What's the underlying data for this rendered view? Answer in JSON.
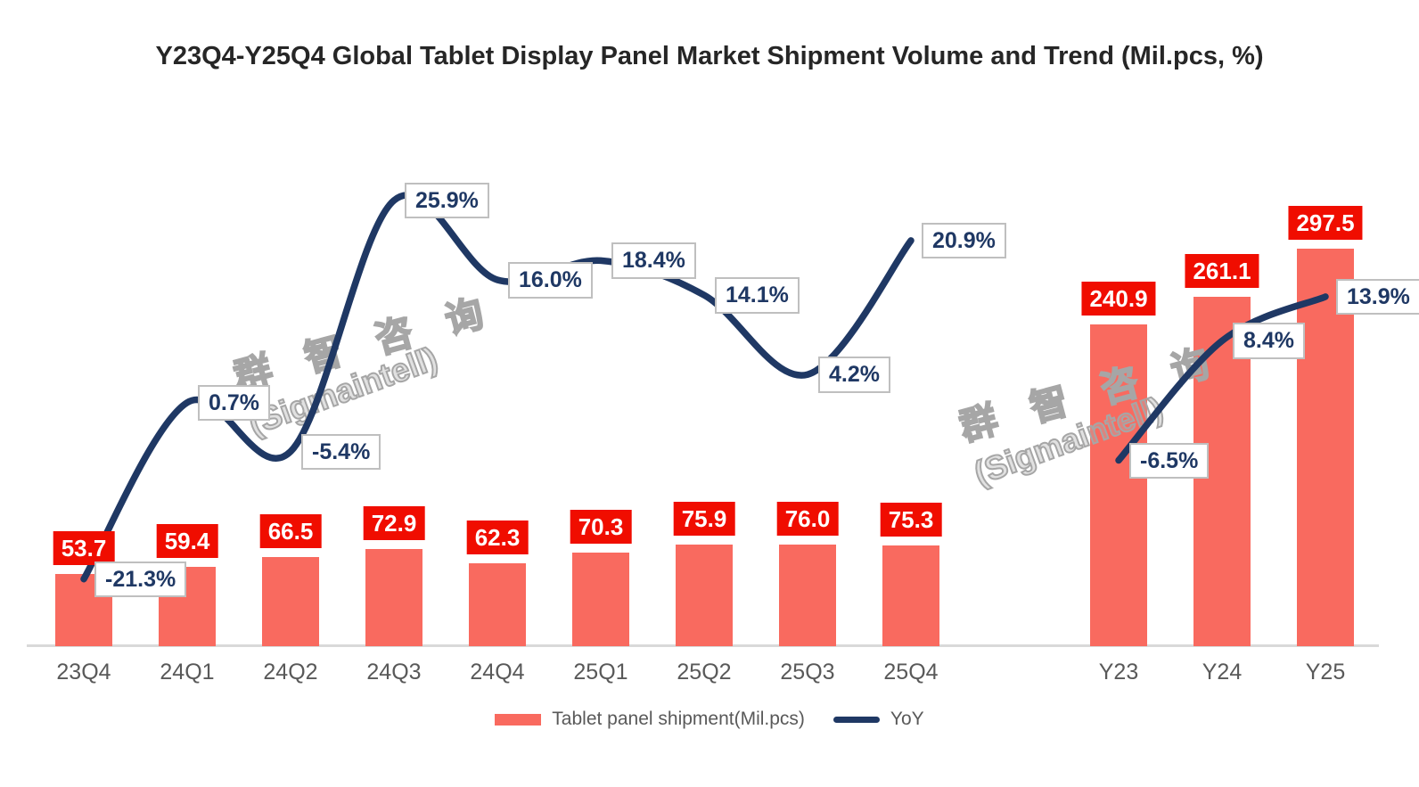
{
  "title": "Y23Q4-Y25Q4 Global Tablet Display Panel Market Shipment Volume and Trend (Mil.pcs, %)",
  "watermark": {
    "line1": "群 智 咨 询",
    "line2": "(Sigmaintell)"
  },
  "legend": {
    "bars": "Tablet panel shipment(Mil.pcs)",
    "line": "YoY"
  },
  "colors": {
    "bar": "#F96A5F",
    "bar_label_bg": "#F00D00",
    "bar_label_text": "#FFFFFF",
    "line": "#1F3864",
    "yoy_label_text": "#1F3864",
    "yoy_label_border": "#BFBFBF",
    "axis": "#D9D9D9",
    "tick_text": "#595959",
    "title_text": "#262626",
    "legend_text": "#595959",
    "watermark": "#A6A6A6"
  },
  "chart_data": {
    "type": "bar+line",
    "title": "Y23Q4-Y25Q4 Global Tablet Display Panel Market Shipment Volume and Trend (Mil.pcs, %)",
    "bar_series_name": "Tablet panel shipment(Mil.pcs)",
    "bar_unit": "Mil.pcs",
    "line_series_name": "YoY",
    "line_unit": "%",
    "grid": false,
    "y_axis_ticks_visible": false,
    "legend_position": "bottom",
    "groups": [
      {
        "name": "quarterly",
        "categories": [
          "23Q4",
          "24Q1",
          "24Q2",
          "24Q3",
          "24Q4",
          "25Q1",
          "25Q2",
          "25Q3",
          "25Q4"
        ],
        "shipment": [
          53.7,
          59.4,
          66.5,
          72.9,
          62.3,
          70.3,
          75.9,
          76.0,
          75.3
        ],
        "yoy": [
          -21.3,
          0.7,
          -5.4,
          25.9,
          16.0,
          18.4,
          14.1,
          4.2,
          20.9
        ]
      },
      {
        "name": "yearly",
        "categories": [
          "Y23",
          "Y24",
          "Y25"
        ],
        "shipment": [
          240.9,
          261.1,
          297.5
        ],
        "yoy": [
          -6.5,
          8.4,
          13.9
        ]
      }
    ],
    "bar_value_labels": [
      "53.7",
      "59.4",
      "66.5",
      "72.9",
      "62.3",
      "70.3",
      "75.9",
      "76.0",
      "75.3",
      "240.9",
      "261.1",
      "297.5"
    ],
    "yoy_value_labels": [
      "-21.3%",
      "0.7%",
      "-5.4%",
      "25.9%",
      "16.0%",
      "18.4%",
      "14.1%",
      "4.2%",
      "20.9%",
      "-6.5%",
      "8.4%",
      "13.9%"
    ]
  }
}
